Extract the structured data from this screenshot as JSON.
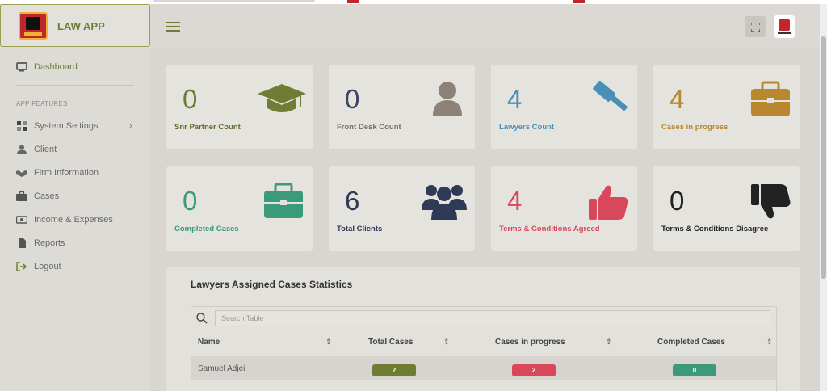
{
  "app": {
    "title": "LAW APP"
  },
  "sidebar": {
    "dashboard": "Dashboard",
    "section": "APP FEATURES",
    "items": [
      {
        "label": "System Settings",
        "icon": "grid-icon"
      },
      {
        "label": "Client",
        "icon": "user-icon"
      },
      {
        "label": "Firm Information",
        "icon": "handshake-icon"
      },
      {
        "label": "Cases",
        "icon": "briefcase-icon"
      },
      {
        "label": "Income & Expenses",
        "icon": "money-icon"
      },
      {
        "label": "Reports",
        "icon": "file-icon"
      },
      {
        "label": "Logout",
        "icon": "logout-icon"
      }
    ]
  },
  "cards": [
    {
      "count": "0",
      "label": "Snr Partner Count",
      "color": "#6f7c34",
      "icon": "graduation-cap-icon"
    },
    {
      "count": "0",
      "label": "Front Desk Count",
      "color": "#3d4566",
      "icon": "user-icon"
    },
    {
      "count": "4",
      "label": "Lawyers Count",
      "color": "#4a8fb8",
      "icon": "gavel-icon"
    },
    {
      "count": "4",
      "label": "Cases in progress",
      "color": "#b8872e",
      "icon": "briefcase-icon"
    },
    {
      "count": "0",
      "label": "Completed Cases",
      "color": "#3a9a7a",
      "icon": "briefcase-icon"
    },
    {
      "count": "6",
      "label": "Total Clients",
      "color": "#2f3a57",
      "icon": "users-icon"
    },
    {
      "count": "4",
      "label": "Terms & Conditions Agreed",
      "color": "#d9485a",
      "icon": "thumbs-up-icon"
    },
    {
      "count": "0",
      "label": "Terms & Conditions Disagree",
      "color": "#222222",
      "icon": "thumbs-down-icon"
    }
  ],
  "stats": {
    "title": "Lawyers Assigned Cases Statistics",
    "search_placeholder": "Search Table",
    "columns": [
      "Name",
      "Total Cases",
      "Cases in progress",
      "Completed Cases"
    ],
    "rows": [
      {
        "name": "Samuel Adjei",
        "total": "2",
        "in_progress": "2",
        "completed": "0"
      }
    ],
    "pill_colors": {
      "total": "#6f7c34",
      "in_progress": "#d9485a",
      "completed": "#3a9a7a"
    }
  }
}
